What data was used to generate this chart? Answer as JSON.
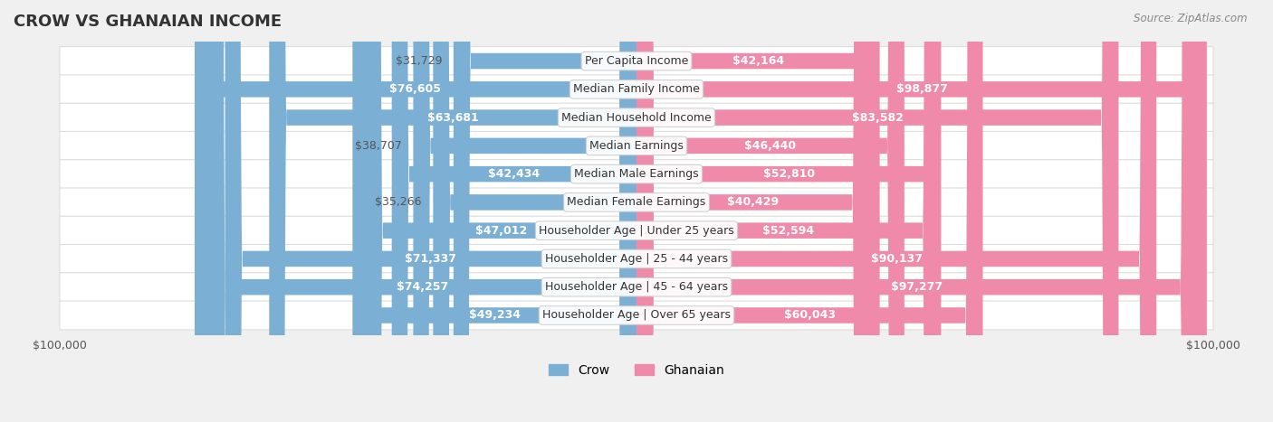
{
  "title": "CROW VS GHANAIAN INCOME",
  "source": "Source: ZipAtlas.com",
  "categories": [
    "Per Capita Income",
    "Median Family Income",
    "Median Household Income",
    "Median Earnings",
    "Median Male Earnings",
    "Median Female Earnings",
    "Householder Age | Under 25 years",
    "Householder Age | 25 - 44 years",
    "Householder Age | 45 - 64 years",
    "Householder Age | Over 65 years"
  ],
  "crow_values": [
    31729,
    76605,
    63681,
    38707,
    42434,
    35266,
    47012,
    71337,
    74257,
    49234
  ],
  "ghanaian_values": [
    42164,
    98877,
    83582,
    46440,
    52810,
    40429,
    52594,
    90137,
    97277,
    60043
  ],
  "crow_labels": [
    "$31,729",
    "$76,605",
    "$63,681",
    "$38,707",
    "$42,434",
    "$35,266",
    "$47,012",
    "$71,337",
    "$74,257",
    "$49,234"
  ],
  "ghanaian_labels": [
    "$42,164",
    "$98,877",
    "$83,582",
    "$46,440",
    "$52,810",
    "$40,429",
    "$52,594",
    "$90,137",
    "$97,277",
    "$60,043"
  ],
  "crow_color": "#7bafd4",
  "ghanaian_color": "#f08aaa",
  "crow_color_dark": "#5b9dc9",
  "ghanaian_color_dark": "#e8607a",
  "max_value": 100000,
  "bar_height": 0.55,
  "bg_color": "#f0f0f0",
  "row_bg_color": "#f8f8f8",
  "row_border_color": "#dddddd",
  "label_bg_color": "#ffffff",
  "label_fontsize": 9,
  "title_fontsize": 13,
  "axis_label_fontsize": 9,
  "legend_fontsize": 10
}
